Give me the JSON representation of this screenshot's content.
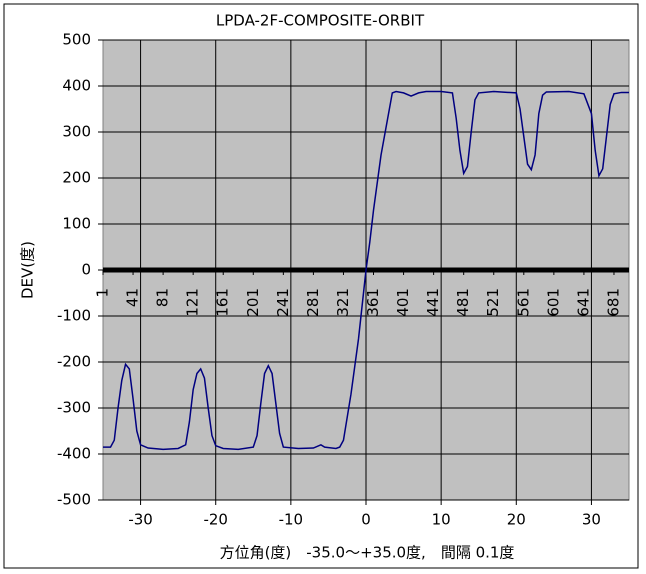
{
  "chart_data": {
    "type": "line",
    "title": "LPDA-2F-COMPOSITE-ORBIT",
    "xlabel": "方位角(度)　-35.0～+35.0度,　間隔 0.1度",
    "ylabel": "DEV(度)",
    "x": [
      -35,
      -34,
      -33.5,
      -33,
      -32.5,
      -32,
      -31.5,
      -31,
      -30.5,
      -30,
      -29,
      -27,
      -25,
      -24,
      -23.5,
      -23,
      -22.5,
      -22,
      -21.5,
      -21,
      -20.5,
      -20,
      -19,
      -17,
      -15,
      -14.5,
      -14,
      -13.5,
      -13,
      -12.5,
      -12,
      -11.5,
      -11,
      -9,
      -7,
      -6,
      -5.5,
      -4,
      -3.5,
      -3,
      -2,
      -1,
      0,
      0.5,
      1,
      2,
      3,
      3.5,
      4,
      5,
      6,
      7,
      8,
      10,
      11.5,
      12,
      12.5,
      13,
      13.5,
      14,
      14.5,
      15,
      17,
      20,
      20.5,
      21,
      21.5,
      22,
      22.5,
      23,
      23.5,
      24,
      27,
      29,
      30,
      30.5,
      31,
      31.5,
      32,
      32.5,
      33,
      34,
      35
    ],
    "series": [
      {
        "name": "DEV",
        "color": "#000080",
        "values": [
          -385,
          -385,
          -370,
          -300,
          -240,
          -205,
          -215,
          -280,
          -350,
          -380,
          -387,
          -390,
          -388,
          -380,
          -330,
          -260,
          -225,
          -215,
          -235,
          -300,
          -360,
          -382,
          -388,
          -390,
          -385,
          -360,
          -290,
          -225,
          -208,
          -225,
          -290,
          -355,
          -385,
          -388,
          -387,
          -380,
          -385,
          -388,
          -385,
          -370,
          -270,
          -150,
          0,
          60,
          130,
          250,
          340,
          385,
          388,
          385,
          378,
          385,
          388,
          388,
          385,
          330,
          260,
          210,
          225,
          300,
          370,
          385,
          388,
          385,
          350,
          290,
          230,
          218,
          250,
          340,
          380,
          387,
          388,
          383,
          340,
          260,
          205,
          220,
          290,
          360,
          383,
          386,
          386
        ]
      }
    ],
    "xlim": [
      -35,
      35
    ],
    "xticks": [
      -30,
      -20,
      -10,
      0,
      10,
      20,
      30
    ],
    "ylim": [
      -500,
      500
    ],
    "yticks": [
      -500,
      -400,
      -300,
      -200,
      -100,
      0,
      100,
      200,
      300,
      400,
      500
    ],
    "x2lim": [
      1,
      701
    ],
    "x2ticks": [
      1,
      41,
      81,
      121,
      161,
      201,
      241,
      281,
      321,
      361,
      401,
      441,
      481,
      521,
      561,
      601,
      641,
      681
    ],
    "grid": true
  }
}
